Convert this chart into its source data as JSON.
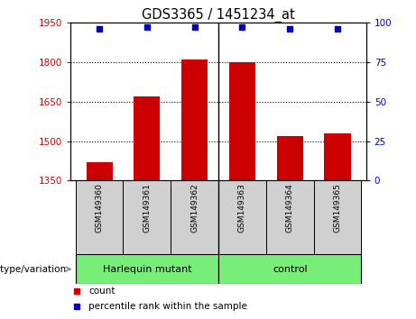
{
  "title": "GDS3365 / 1451234_at",
  "samples": [
    "GSM149360",
    "GSM149361",
    "GSM149362",
    "GSM149363",
    "GSM149364",
    "GSM149365"
  ],
  "bar_values": [
    1420,
    1668,
    1810,
    1800,
    1520,
    1530
  ],
  "percentile_values": [
    96,
    97,
    97,
    97,
    96,
    96
  ],
  "ylim_left": [
    1350,
    1950
  ],
  "ylim_right": [
    0,
    100
  ],
  "yticks_left": [
    1350,
    1500,
    1650,
    1800,
    1950
  ],
  "yticks_right": [
    0,
    25,
    50,
    75,
    100
  ],
  "grid_values": [
    1500,
    1650,
    1800
  ],
  "bar_color": "#cc0000",
  "dot_color": "#0000cc",
  "group_separator": 2.5,
  "group_label": "genotype/variation",
  "groups": [
    {
      "label": "Harlequin mutant",
      "start": 0,
      "end": 2,
      "color": "#77ee77"
    },
    {
      "label": "control",
      "start": 3,
      "end": 5,
      "color": "#77ee77"
    }
  ],
  "legend_count_label": "count",
  "legend_pct_label": "percentile rank within the sample",
  "tick_color_left": "#cc0000",
  "tick_color_right": "#0000cc",
  "bar_width": 0.55,
  "sample_box_color": "#d0d0d0"
}
